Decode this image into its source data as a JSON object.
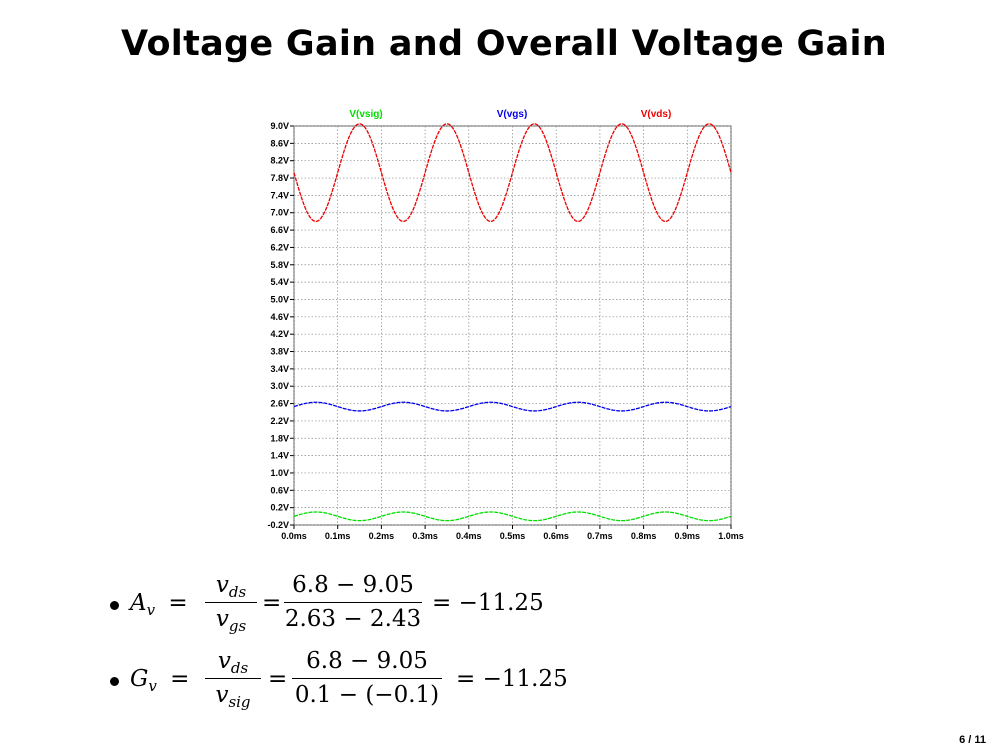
{
  "slide": {
    "title": "Voltage Gain and Overall Voltage Gain",
    "page": "6 / 11"
  },
  "chart_data": {
    "type": "line",
    "xlabel": "",
    "ylabel": "",
    "xlim": [
      0.0,
      1.0
    ],
    "ylim": [
      -0.2,
      9.0
    ],
    "x_ticks": [
      "0.0ms",
      "0.1ms",
      "0.2ms",
      "0.3ms",
      "0.4ms",
      "0.5ms",
      "0.6ms",
      "0.7ms",
      "0.8ms",
      "0.9ms",
      "1.0ms"
    ],
    "y_ticks": [
      "9.0V",
      "8.6V",
      "8.2V",
      "7.8V",
      "7.4V",
      "7.0V",
      "6.6V",
      "6.2V",
      "5.8V",
      "5.4V",
      "5.0V",
      "4.6V",
      "4.2V",
      "3.8V",
      "3.4V",
      "3.0V",
      "2.6V",
      "2.2V",
      "1.8V",
      "1.4V",
      "1.0V",
      "0.6V",
      "0.2V",
      "-0.2V"
    ],
    "grid": true,
    "legend_position": "top",
    "series": [
      {
        "name": "V(vsig)",
        "color": "#00dd00",
        "offset": 0.0,
        "amplitude": 0.1,
        "frequency_khz": 5
      },
      {
        "name": "V(vgs)",
        "color": "#0000ee",
        "offset": 2.53,
        "amplitude": 0.1,
        "frequency_khz": 5
      },
      {
        "name": "V(vds)",
        "color": "#ee0000",
        "offset": 7.925,
        "amplitude": 1.125,
        "frequency_khz": 5,
        "inverted": true
      }
    ]
  },
  "equations": {
    "av": {
      "lhs": "A",
      "lhs_sub": "v",
      "ratio_num": "v",
      "ratio_num_sub": "ds",
      "ratio_den": "v",
      "ratio_den_sub": "gs",
      "num": "6.8 − 9.05",
      "den": "2.63 − 2.43",
      "result": "= −11.25"
    },
    "gv": {
      "lhs": "G",
      "lhs_sub": "v",
      "ratio_num": "v",
      "ratio_num_sub": "ds",
      "ratio_den": "v",
      "ratio_den_sub": "sig",
      "num": "6.8 − 9.05",
      "den": "0.1 − (−0.1)",
      "result": "= −11.25"
    }
  }
}
